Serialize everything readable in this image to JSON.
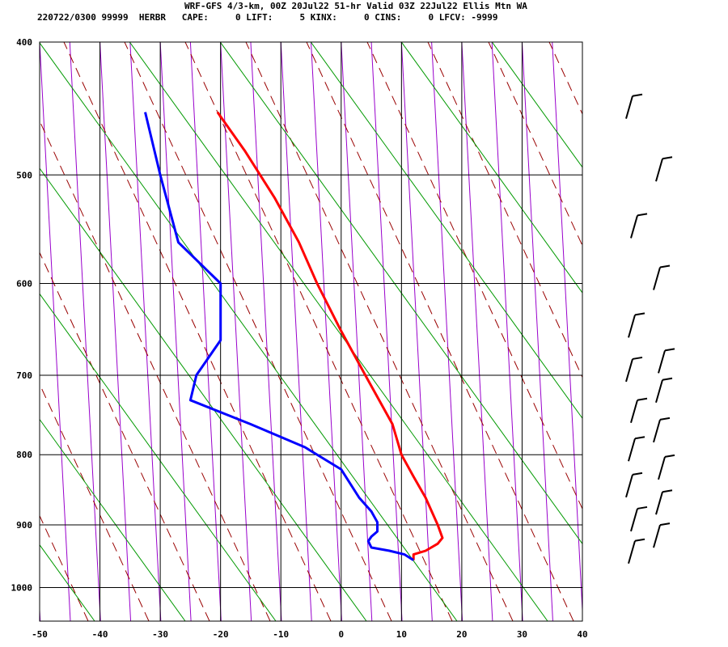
{
  "header": {
    "title": "WRF-GFS 4/3-km, 00Z 20Jul22 51-hr Valid 03Z 22Jul22 Ellis Mtn WA",
    "info": "220722/0300 99999  HERBR   CAPE:     0 LIFT:     5 KINX:     0 CINS:     0 LFCV: -9999"
  },
  "chart_data": {
    "type": "line",
    "xlim": [
      -50,
      40
    ],
    "ylim_pressure_hPa": [
      1040,
      400
    ],
    "y_scale": "log pressure",
    "x_ticks": [
      -50,
      -40,
      -30,
      -20,
      -10,
      0,
      10,
      20,
      30,
      40
    ],
    "x_tick_labels": [
      "-50",
      "-40",
      "-30",
      "-20",
      "-10",
      "0",
      "10",
      "20",
      "30",
      "40"
    ],
    "y_ticks": [
      400,
      500,
      600,
      700,
      800,
      900,
      1000
    ],
    "y_tick_labels": [
      "400",
      "500",
      "600",
      "700",
      "800",
      "900",
      "1000"
    ],
    "grid": true,
    "series": [
      {
        "color": "#ff0000",
        "points": [
          {
            "p": 955,
            "t": 12
          },
          {
            "p": 946,
            "t": 12
          },
          {
            "p": 940,
            "t": 14
          },
          {
            "p": 929,
            "t": 16
          },
          {
            "p": 920,
            "t": 16.8
          },
          {
            "p": 900,
            "t": 16
          },
          {
            "p": 860,
            "t": 14
          },
          {
            "p": 830,
            "t": 12
          },
          {
            "p": 800,
            "t": 10
          },
          {
            "p": 760,
            "t": 8.5
          },
          {
            "p": 700,
            "t": 4
          },
          {
            "p": 650,
            "t": 0
          },
          {
            "p": 600,
            "t": -4
          },
          {
            "p": 560,
            "t": -7
          },
          {
            "p": 520,
            "t": -11
          },
          {
            "p": 480,
            "t": -16
          },
          {
            "p": 450,
            "t": -20.5
          }
        ]
      },
      {
        "color": "#0000ff",
        "points": [
          {
            "p": 955,
            "t": 12
          },
          {
            "p": 946,
            "t": 10.5
          },
          {
            "p": 940,
            "t": 8
          },
          {
            "p": 935,
            "t": 5
          },
          {
            "p": 925,
            "t": 4.5
          },
          {
            "p": 918,
            "t": 5
          },
          {
            "p": 910,
            "t": 6
          },
          {
            "p": 896,
            "t": 6
          },
          {
            "p": 880,
            "t": 5
          },
          {
            "p": 860,
            "t": 3
          },
          {
            "p": 820,
            "t": 0
          },
          {
            "p": 790,
            "t": -6
          },
          {
            "p": 760,
            "t": -15
          },
          {
            "p": 730,
            "t": -25
          },
          {
            "p": 700,
            "t": -24
          },
          {
            "p": 660,
            "t": -20
          },
          {
            "p": 600,
            "t": -20
          },
          {
            "p": 560,
            "t": -27
          },
          {
            "p": 500,
            "t": -30
          },
          {
            "p": 450,
            "t": -32.5
          }
        ]
      }
    ],
    "background_lines": {
      "isotherms": {
        "color": "#9900cc"
      },
      "dry_adiabats": {
        "color": "#990000",
        "style": "dashed"
      },
      "mixing_ratio": {
        "color": "#009900"
      }
    },
    "wind_barbs": {
      "color": "#000000",
      "pressures": [
        450,
        500,
        550,
        600,
        650,
        690,
        700,
        725,
        750,
        775,
        800,
        825,
        850,
        875,
        900,
        925,
        950
      ]
    }
  }
}
